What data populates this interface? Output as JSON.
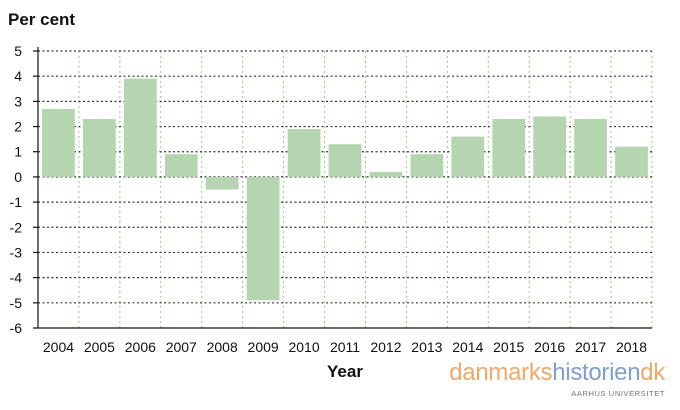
{
  "chart_data": {
    "type": "bar",
    "title": "",
    "ylabel": "Per cent",
    "xlabel": "Year",
    "categories": [
      "2004",
      "2005",
      "2006",
      "2007",
      "2008",
      "2009",
      "2010",
      "2011",
      "2012",
      "2013",
      "2014",
      "2015",
      "2016",
      "2017",
      "2018"
    ],
    "values": [
      2.7,
      2.3,
      3.9,
      0.9,
      -0.5,
      -4.9,
      1.9,
      1.3,
      0.2,
      0.9,
      1.6,
      2.3,
      2.4,
      2.3,
      1.2
    ],
    "ylim": [
      -6,
      5
    ],
    "yticks": [
      5,
      4,
      3,
      2,
      1,
      0,
      -1,
      -2,
      -3,
      -4,
      -5,
      -6
    ],
    "ytick_labels": [
      "5",
      "4",
      "3",
      "2",
      "1",
      "0",
      "-1",
      "-2",
      "-3",
      "-4",
      "-5",
      "-6"
    ],
    "grid": true,
    "legend": "none",
    "bar_color": "#b5d4b0",
    "grid_color": "#333333",
    "vgrid_color": "#8fc98a"
  },
  "logo": {
    "part1": "danmarks",
    "part2": "historien",
    "part3": "dk",
    "subtitle": "AARHUS UNIVERSITET",
    "color_orange": "#f0a96a",
    "color_blue": "#7f9fcf",
    "color_orange_dot": "#f0a96a"
  }
}
